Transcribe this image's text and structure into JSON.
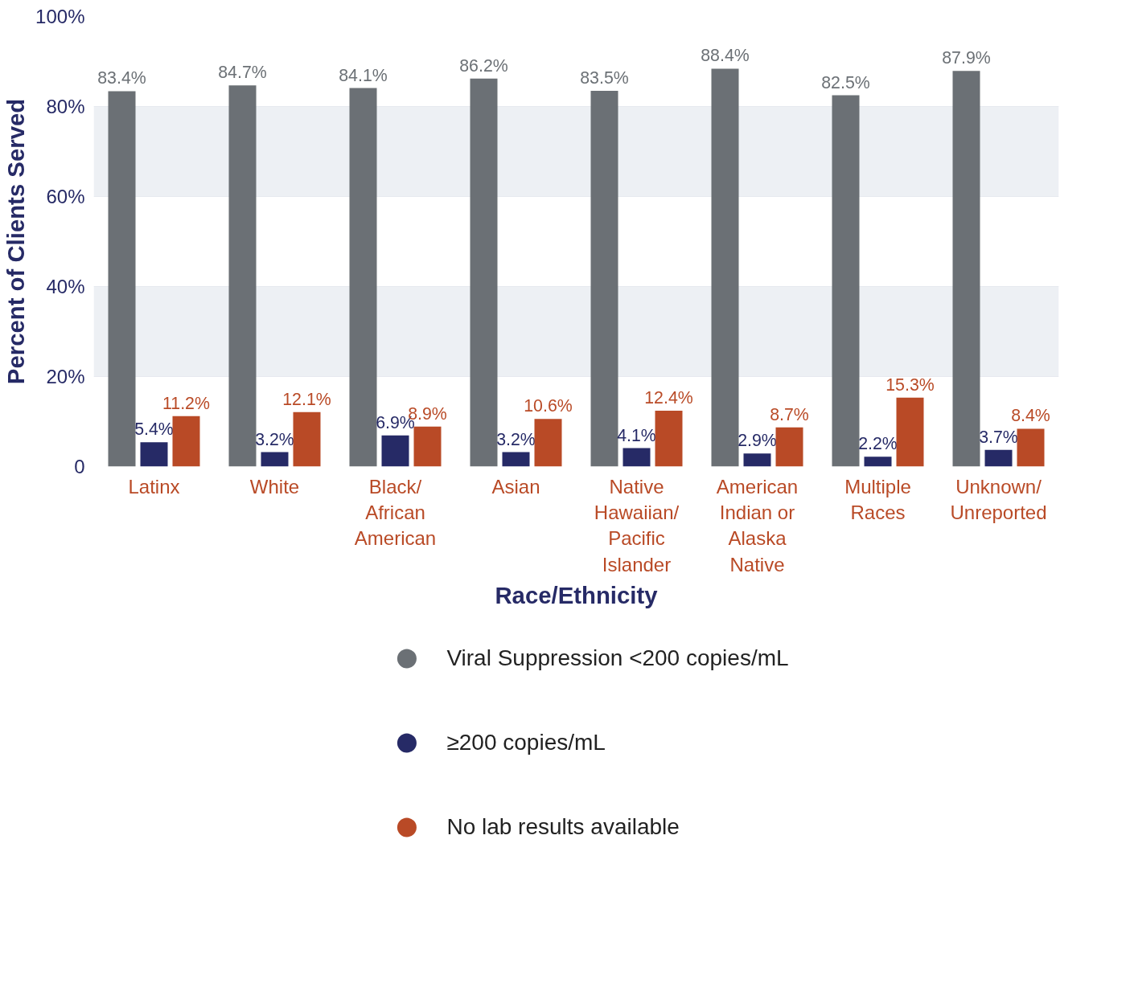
{
  "chart_data": {
    "type": "bar",
    "xlabel": "Race/Ethnicity",
    "ylabel": "Percent of Clients Served",
    "categories": [
      "Latinx",
      "White",
      "Black/African American",
      "Asian",
      "Native Hawaiian/Pacific Islander",
      "American Indian or Alaska Native",
      "Multiple Races",
      "Unknown/Unreported"
    ],
    "series": [
      {
        "name": "Viral Suppression <200 copies/mL",
        "color": "#6b7075",
        "values": [
          83.4,
          84.7,
          84.1,
          86.2,
          83.5,
          88.4,
          82.5,
          87.9
        ],
        "value_labels": [
          "83.4%",
          "84.7%",
          "84.1%",
          "86.2%",
          "83.5%",
          "88.4%",
          "82.5%",
          "87.9%"
        ]
      },
      {
        "name": "≥200 copies/mL",
        "color": "#262a66",
        "values": [
          5.4,
          3.2,
          6.9,
          3.2,
          4.1,
          2.9,
          2.2,
          3.7
        ],
        "value_labels": [
          "5.4%",
          "3.2%",
          "6.9%",
          "3.2%",
          "4.1%",
          "2.9%",
          "2.2%",
          "3.7%"
        ]
      },
      {
        "name": "No lab results available",
        "color": "#b94a26",
        "values": [
          11.2,
          12.1,
          8.9,
          10.6,
          12.4,
          8.7,
          15.3,
          8.4
        ],
        "value_labels": [
          "11.2%",
          "12.1%",
          "8.9%",
          "10.6%",
          "12.4%",
          "8.7%",
          "15.3%",
          "8.4%"
        ]
      }
    ],
    "ylim": [
      0,
      100
    ],
    "yticks": [
      0,
      {
        "value": 20,
        "label": "20%"
      },
      {
        "value": 40,
        "label": "40%"
      },
      {
        "value": 60,
        "label": "60%"
      },
      {
        "value": 80,
        "label": "80%"
      },
      {
        "value": 100,
        "label": "100%"
      }
    ],
    "grid": "y",
    "legend": "bottom"
  }
}
